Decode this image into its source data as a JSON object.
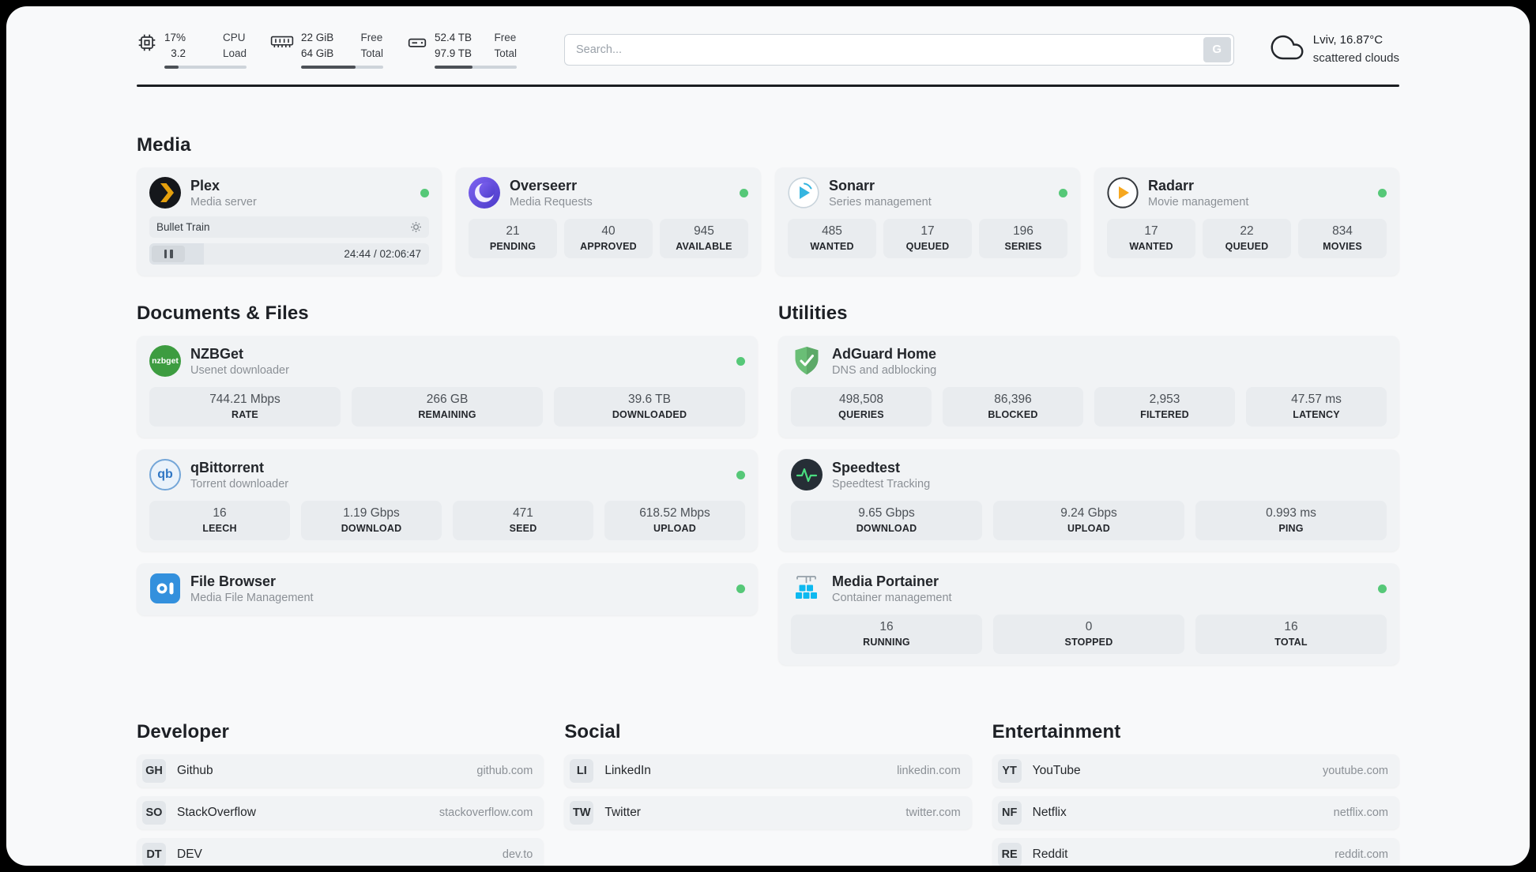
{
  "colors": {
    "status_green": "#56c878",
    "plex_accent": "#e5a00d",
    "page_bg": "#f8f9fa",
    "card_bg": "#f1f3f5",
    "stat_bg": "#e9ecef"
  },
  "topbar": {
    "cpu": {
      "values": [
        "17%",
        "3.2"
      ],
      "labels": [
        "CPU",
        "Load"
      ],
      "percent": 17
    },
    "ram": {
      "values": [
        "22 GiB",
        "64 GiB"
      ],
      "labels": [
        "Free",
        "Total"
      ],
      "percent": 66
    },
    "disk": {
      "values": [
        "52.4 TB",
        "97.9 TB"
      ],
      "labels": [
        "Free",
        "Total"
      ],
      "percent": 46
    },
    "search": {
      "placeholder": "Search...",
      "button_label": "G"
    },
    "weather": {
      "location": "Lviv, 16.87°C",
      "condition": "scattered clouds"
    }
  },
  "media": {
    "title": "Media",
    "plex": {
      "name": "Plex",
      "subtitle": "Media server",
      "now_playing": "Bullet Train",
      "time": "24:44 / 02:06:47",
      "progress_percent": 19.5
    },
    "overseerr": {
      "name": "Overseerr",
      "subtitle": "Media Requests",
      "stats": [
        {
          "value": "21",
          "label": "PENDING"
        },
        {
          "value": "40",
          "label": "APPROVED"
        },
        {
          "value": "945",
          "label": "AVAILABLE"
        }
      ]
    },
    "sonarr": {
      "name": "Sonarr",
      "subtitle": "Series management",
      "stats": [
        {
          "value": "485",
          "label": "WANTED"
        },
        {
          "value": "17",
          "label": "QUEUED"
        },
        {
          "value": "196",
          "label": "SERIES"
        }
      ]
    },
    "radarr": {
      "name": "Radarr",
      "subtitle": "Movie management",
      "stats": [
        {
          "value": "17",
          "label": "WANTED"
        },
        {
          "value": "22",
          "label": "QUEUED"
        },
        {
          "value": "834",
          "label": "MOVIES"
        }
      ]
    }
  },
  "documents": {
    "title": "Documents & Files",
    "nzbget": {
      "name": "NZBGet",
      "subtitle": "Usenet downloader",
      "icon_text": "nzbget",
      "stats": [
        {
          "value": "744.21 Mbps",
          "label": "RATE"
        },
        {
          "value": "266 GB",
          "label": "REMAINING"
        },
        {
          "value": "39.6 TB",
          "label": "DOWNLOADED"
        }
      ]
    },
    "qbittorrent": {
      "name": "qBittorrent",
      "subtitle": "Torrent downloader",
      "icon_text": "qb",
      "stats": [
        {
          "value": "16",
          "label": "LEECH"
        },
        {
          "value": "1.19 Gbps",
          "label": "DOWNLOAD"
        },
        {
          "value": "471",
          "label": "SEED"
        },
        {
          "value": "618.52 Mbps",
          "label": "UPLOAD"
        }
      ]
    },
    "filebrowser": {
      "name": "File Browser",
      "subtitle": "Media File Management"
    }
  },
  "utilities": {
    "title": "Utilities",
    "adguard": {
      "name": "AdGuard Home",
      "subtitle": "DNS and adblocking",
      "stats": [
        {
          "value": "498,508",
          "label": "QUERIES"
        },
        {
          "value": "86,396",
          "label": "BLOCKED"
        },
        {
          "value": "2,953",
          "label": "FILTERED"
        },
        {
          "value": "47.57 ms",
          "label": "LATENCY"
        }
      ]
    },
    "speedtest": {
      "name": "Speedtest",
      "subtitle": "Speedtest Tracking",
      "stats": [
        {
          "value": "9.65 Gbps",
          "label": "DOWNLOAD"
        },
        {
          "value": "9.24 Gbps",
          "label": "UPLOAD"
        },
        {
          "value": "0.993 ms",
          "label": "PING"
        }
      ]
    },
    "portainer": {
      "name": "Media Portainer",
      "subtitle": "Container management",
      "stats": [
        {
          "value": "16",
          "label": "RUNNING"
        },
        {
          "value": "0",
          "label": "STOPPED"
        },
        {
          "value": "16",
          "label": "TOTAL"
        }
      ]
    }
  },
  "developer": {
    "title": "Developer",
    "links": [
      {
        "abbr": "GH",
        "name": "Github",
        "url": "github.com"
      },
      {
        "abbr": "SO",
        "name": "StackOverflow",
        "url": "stackoverflow.com"
      },
      {
        "abbr": "DT",
        "name": "DEV",
        "url": "dev.to"
      }
    ]
  },
  "social": {
    "title": "Social",
    "links": [
      {
        "abbr": "LI",
        "name": "LinkedIn",
        "url": "linkedin.com"
      },
      {
        "abbr": "TW",
        "name": "Twitter",
        "url": "twitter.com"
      }
    ]
  },
  "entertainment": {
    "title": "Entertainment",
    "links": [
      {
        "abbr": "YT",
        "name": "YouTube",
        "url": "youtube.com"
      },
      {
        "abbr": "NF",
        "name": "Netflix",
        "url": "netflix.com"
      },
      {
        "abbr": "RE",
        "name": "Reddit",
        "url": "reddit.com"
      }
    ]
  }
}
